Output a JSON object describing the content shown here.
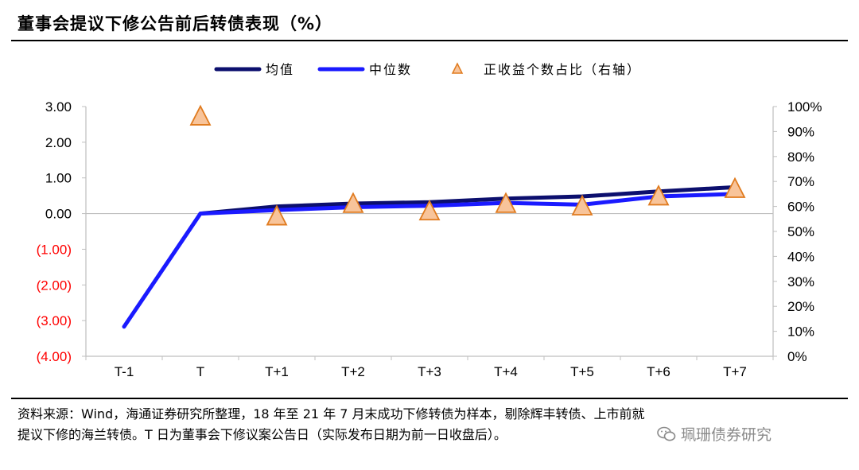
{
  "title": "董事会提议下修公告前后转债表现（%）",
  "source_note": {
    "line1": "资料来源：Wind，海通证券研究所整理，18 年至 21 年 7 月末成功下修转债为样本，剔除辉丰转债、上市前就",
    "line2": "提议下修的海兰转债。T 日为董事会下修议案公告日（实际发布日期为前一日收盘后）。"
  },
  "watermark": "珮珊债券研究",
  "watermark_icon": "wechat-icon",
  "colors": {
    "avg": "#0c0f6e",
    "median": "#1a1aff",
    "marker_fill": "#f8c49a",
    "marker_stroke": "#e07b1f",
    "negative_tick": "#ff0000"
  },
  "chart_data": {
    "type": "line",
    "categories": [
      "T-1",
      "T",
      "T+1",
      "T+2",
      "T+3",
      "T+4",
      "T+5",
      "T+6",
      "T+7"
    ],
    "series": [
      {
        "name": "均值",
        "axis": "left",
        "values": [
          null,
          0.0,
          0.2,
          0.28,
          0.32,
          0.42,
          0.48,
          0.62,
          0.74
        ]
      },
      {
        "name": "中位数",
        "axis": "left",
        "values": [
          -3.17,
          0.0,
          0.1,
          0.18,
          0.22,
          0.3,
          0.25,
          0.48,
          0.55
        ]
      },
      {
        "name": "正收益个数占比（右轴）",
        "axis": "right",
        "marker": "triangle",
        "values": [
          null,
          0.96,
          0.56,
          0.61,
          0.58,
          0.61,
          0.6,
          0.64,
          0.67
        ]
      }
    ],
    "left_axis": {
      "ylim": [
        -4,
        3
      ],
      "ticks": [
        3,
        2,
        1,
        0,
        -1,
        -2,
        -3,
        -4
      ],
      "tick_labels": [
        "3.00",
        "2.00",
        "1.00",
        "0.00",
        "(1.00)",
        "(2.00)",
        "(3.00)",
        "(4.00)"
      ]
    },
    "right_axis": {
      "ylim": [
        0,
        1
      ],
      "ticks": [
        1.0,
        0.9,
        0.8,
        0.7,
        0.6,
        0.5,
        0.4,
        0.3,
        0.2,
        0.1,
        0.0
      ],
      "tick_labels": [
        "100%",
        "90%",
        "80%",
        "70%",
        "60%",
        "50%",
        "40%",
        "30%",
        "20%",
        "10%",
        "0%"
      ]
    },
    "legend": {
      "position": "top-center",
      "entries": [
        "均值",
        "中位数",
        "正收益个数占比（右轴）"
      ]
    }
  }
}
